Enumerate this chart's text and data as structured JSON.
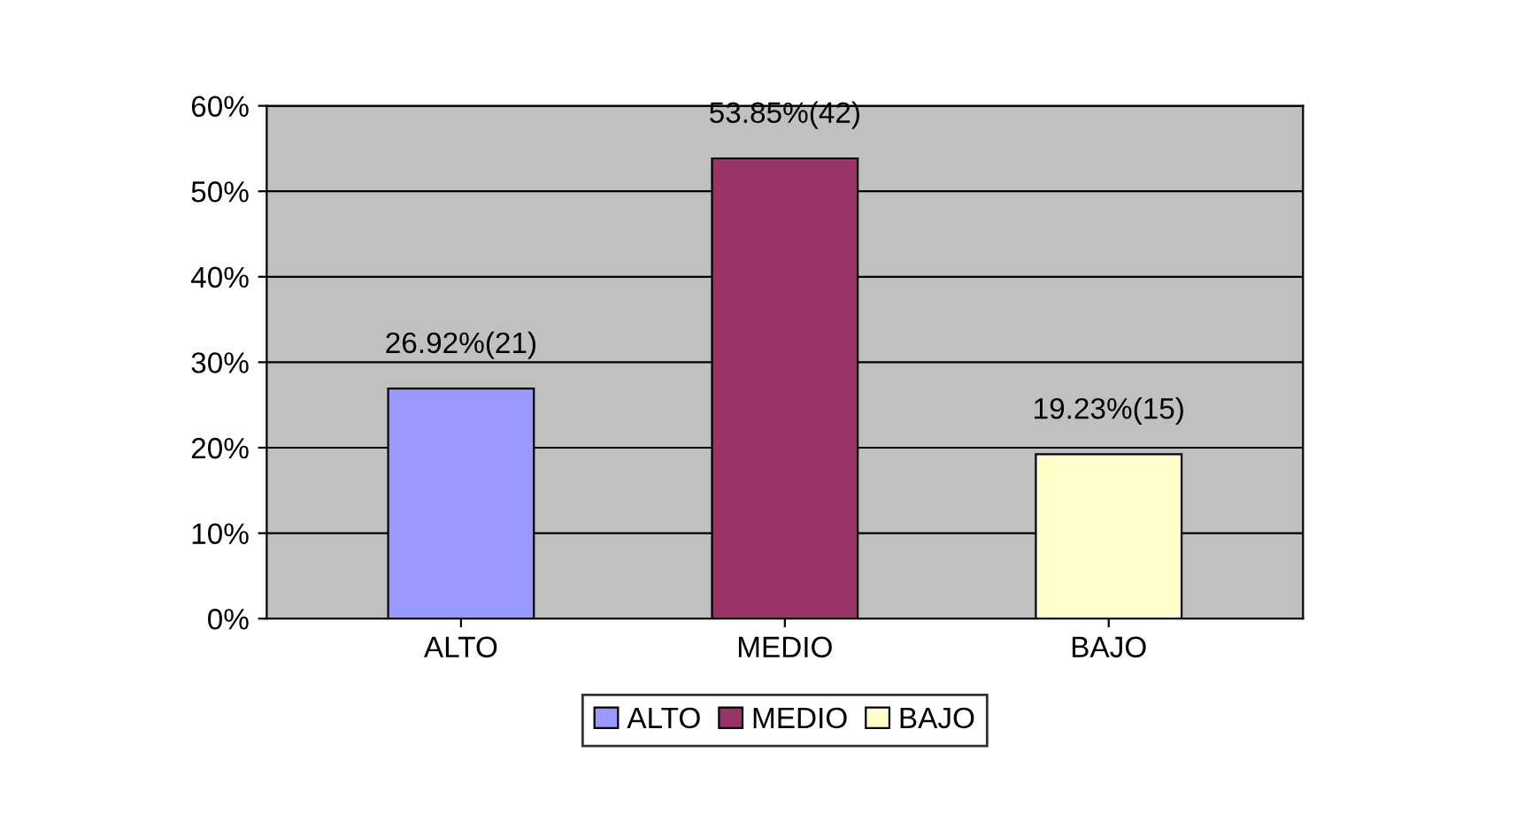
{
  "chart_data": {
    "type": "bar",
    "categories": [
      "ALTO",
      "MEDIO",
      "BAJO"
    ],
    "series": [
      {
        "name": "ALTO",
        "color": "#9999ff",
        "values": [
          26.92,
          null,
          null
        ],
        "value_labels": [
          "26.92%(21)",
          null,
          null
        ]
      },
      {
        "name": "MEDIO",
        "color": "#993366",
        "values": [
          null,
          53.85,
          null
        ],
        "value_labels": [
          null,
          "53.85%(42)",
          null
        ]
      },
      {
        "name": "BAJO",
        "color": "#ffffcc",
        "values": [
          null,
          null,
          19.23
        ],
        "value_labels": [
          null,
          null,
          "19.23%(15)"
        ]
      }
    ],
    "ylim": [
      0,
      60
    ],
    "yticks": [
      {
        "value": 0,
        "label": "0%"
      },
      {
        "value": 10,
        "label": "10%"
      },
      {
        "value": 20,
        "label": "20%"
      },
      {
        "value": 30,
        "label": "30%"
      },
      {
        "value": 40,
        "label": "40%"
      },
      {
        "value": 50,
        "label": "50%"
      },
      {
        "value": 60,
        "label": "60%"
      }
    ],
    "grid": "y",
    "legend": "bottom"
  }
}
